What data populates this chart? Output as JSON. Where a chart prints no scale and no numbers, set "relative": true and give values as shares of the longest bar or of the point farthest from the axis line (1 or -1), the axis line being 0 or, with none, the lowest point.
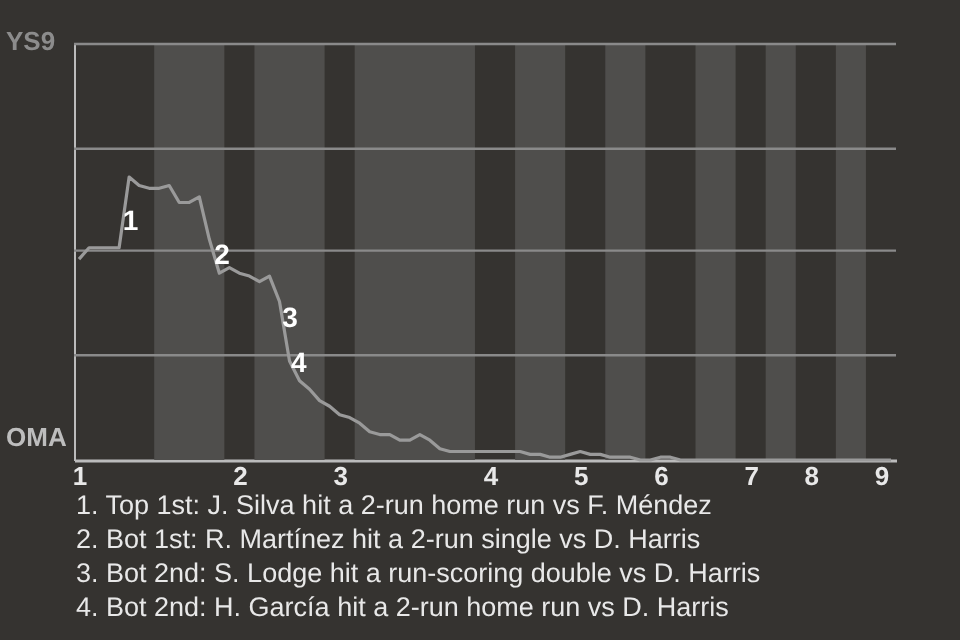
{
  "chart_data": {
    "type": "line",
    "color": "#9a9a9a",
    "relative": true,
    "categories": [
      "1",
      null,
      null,
      null,
      null,
      null,
      null,
      null,
      null,
      null,
      null,
      null,
      null,
      null,
      null,
      null,
      "2",
      null,
      null,
      null,
      null,
      null,
      null,
      null,
      null,
      null,
      "3",
      null,
      null,
      null,
      null,
      null,
      null,
      null,
      null,
      null,
      null,
      null,
      null,
      null,
      null,
      "4",
      null,
      null,
      null,
      null,
      null,
      null,
      null,
      null,
      "5",
      null,
      null,
      null,
      null,
      null,
      null,
      null,
      "6",
      null,
      null,
      null,
      null,
      null,
      null,
      null,
      null,
      "7",
      null,
      null,
      null,
      null,
      null,
      "8",
      null,
      null,
      null,
      null,
      null,
      null,
      "9",
      null
    ],
    "values": [
      0.71,
      0.75,
      0.75,
      0.75,
      0.75,
      1,
      0.97,
      0.96,
      0.96,
      0.97,
      0.91,
      0.91,
      0.93,
      0.78,
      0.66,
      0.68,
      0.66,
      0.65,
      0.63,
      0.65,
      0.56,
      0.35,
      0.28,
      0.25,
      0.21,
      0.19,
      0.16,
      0.15,
      0.13,
      0.1,
      0.09,
      0.09,
      0.07,
      0.07,
      0.09,
      0.07,
      0.04,
      0.03,
      0.03,
      0.03,
      0.03,
      0.03,
      0.03,
      0.03,
      0.03,
      0.02,
      0.02,
      0.01,
      0.01,
      0.02,
      0.03,
      0.02,
      0.02,
      0.01,
      0.01,
      0.01,
      0,
      0,
      0.01,
      0.01,
      0,
      0,
      0,
      0,
      0,
      0,
      0,
      0,
      0,
      0,
      0,
      0,
      0,
      0,
      0,
      0,
      0,
      0,
      0,
      0,
      0,
      0
    ],
    "ref_lines": [
      {
        "axis": "y",
        "value": 0.37,
        "color": "#8a8a8a"
      },
      {
        "axis": "y",
        "value": 0.74,
        "color": "#8a8a8a"
      },
      {
        "axis": "y",
        "value": 1.1,
        "color": "#8a8a8a"
      },
      {
        "axis": "y",
        "value": 1.47,
        "color": "#8a8a8a"
      }
    ],
    "annotations": [
      {
        "text": "1",
        "y": 0.84
      },
      {
        "text": "2",
        "y": 0.72
      },
      {
        "text": "3",
        "y": 0.5
      },
      {
        "text": "4",
        "y": 0.34
      },
      "YS9",
      "OMA",
      "1. Top 1st: J. Silva hit a 2-run home run vs F. Méndez",
      "2. Bot 1st: R. Martínez hit a 2-run single vs D. Harris",
      "3. Bot 2nd: S. Lodge hit a run-scoring double vs D. Harris",
      "4. Bot 2nd: H. García hit a 2-run home run vs D. Harris"
    ]
  }
}
